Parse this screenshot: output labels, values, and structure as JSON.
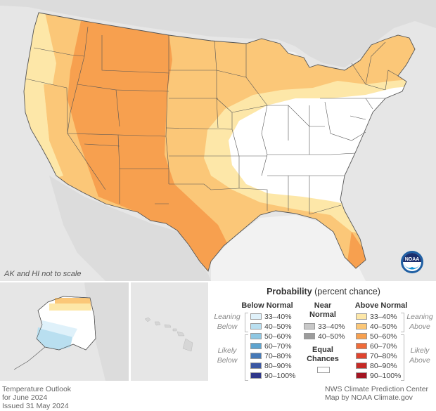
{
  "note": "AK and HI not to scale",
  "footer_left": [
    "Temperature Outlook",
    "for June 2024",
    "Issued 31 May 2024"
  ],
  "footer_right": [
    "NWS Climate Prediction Center",
    "Map by NOAA Climate.gov"
  ],
  "logo_text": "NOAA",
  "legend": {
    "title_bold": "Probability",
    "title_rest": " (percent chance)",
    "below_header": "Below Normal",
    "near_header": "Near Normal",
    "above_header": "Above Normal",
    "leaning_below": "Leaning Below",
    "likely_below": "Likely Below",
    "leaning_above": "Leaning Above",
    "likely_above": "Likely Above",
    "equal_chances": "Equal Chances",
    "below_rows": [
      {
        "label": "33–40%",
        "color": "#dff1fa"
      },
      {
        "label": "40–50%",
        "color": "#b9dff0"
      },
      {
        "label": "50–60%",
        "color": "#8ec7e2"
      },
      {
        "label": "60–70%",
        "color": "#5ea4cf"
      },
      {
        "label": "70–80%",
        "color": "#4679b7"
      },
      {
        "label": "80–90%",
        "color": "#3b57a3"
      },
      {
        "label": "90–100%",
        "color": "#2e3689"
      }
    ],
    "near_rows": [
      {
        "label": "33–40%",
        "color": "#c8c8c8"
      },
      {
        "label": "40–50%",
        "color": "#9c9c9c"
      }
    ],
    "above_rows": [
      {
        "label": "33–40%",
        "color": "#fde7a8"
      },
      {
        "label": "40–50%",
        "color": "#fbc778"
      },
      {
        "label": "50–60%",
        "color": "#f7a04f"
      },
      {
        "label": "60–70%",
        "color": "#f06c3a"
      },
      {
        "label": "70–80%",
        "color": "#e0442e"
      },
      {
        "label": "80–90%",
        "color": "#c52a26"
      },
      {
        "label": "90–100%",
        "color": "#a31522"
      }
    ],
    "equal_color": "#ffffff"
  },
  "colors": {
    "background": "#e6e6e6",
    "land_outside": "#d9d9d9",
    "water": "#ffffff",
    "above_33_40": "#fde7a8",
    "above_40_50": "#fbc778",
    "above_50_60": "#f7a04f",
    "below_33_40": "#dff1fa",
    "below_40_50": "#b9dff0",
    "border": "#555555"
  }
}
